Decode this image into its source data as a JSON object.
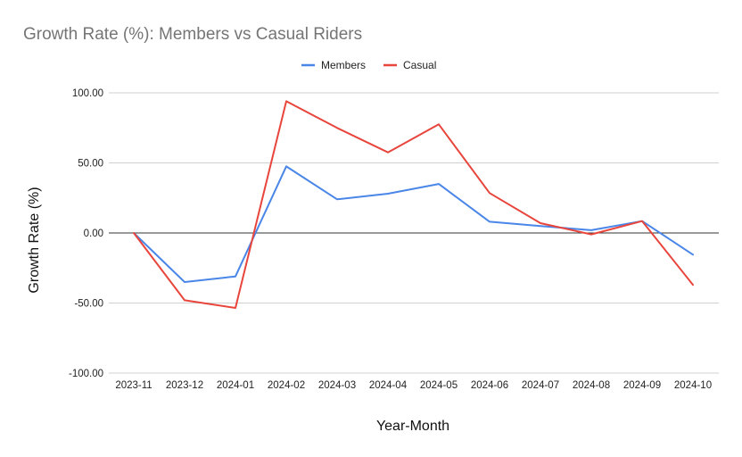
{
  "chart_data": {
    "type": "line",
    "title": "Growth Rate (%): Members vs Casual Riders",
    "xlabel": "Year-Month",
    "ylabel": "Growth Rate (%)",
    "ylim": [
      -100,
      100
    ],
    "yticks": [
      100,
      50,
      0,
      -50,
      -100
    ],
    "ytick_labels": [
      "100.00",
      "50.00",
      "0.00",
      "-50.00",
      "-100.00"
    ],
    "grid": true,
    "legend_position": "top-center",
    "categories": [
      "2023-11",
      "2023-12",
      "2024-01",
      "2024-02",
      "2024-03",
      "2024-04",
      "2024-05",
      "2024-06",
      "2024-07",
      "2024-08",
      "2024-09",
      "2024-10"
    ],
    "series": [
      {
        "name": "Members",
        "color": "#4a86e8",
        "values": [
          0,
          -35,
          -31,
          47.5,
          24,
          28,
          35,
          8,
          5,
          2,
          8.5,
          -15.5
        ]
      },
      {
        "name": "Casual",
        "color": "#e8453c",
        "values": [
          0,
          -48,
          -53.5,
          94,
          75,
          57.5,
          77.5,
          28.5,
          7,
          -1,
          8.5,
          -37
        ]
      }
    ]
  }
}
